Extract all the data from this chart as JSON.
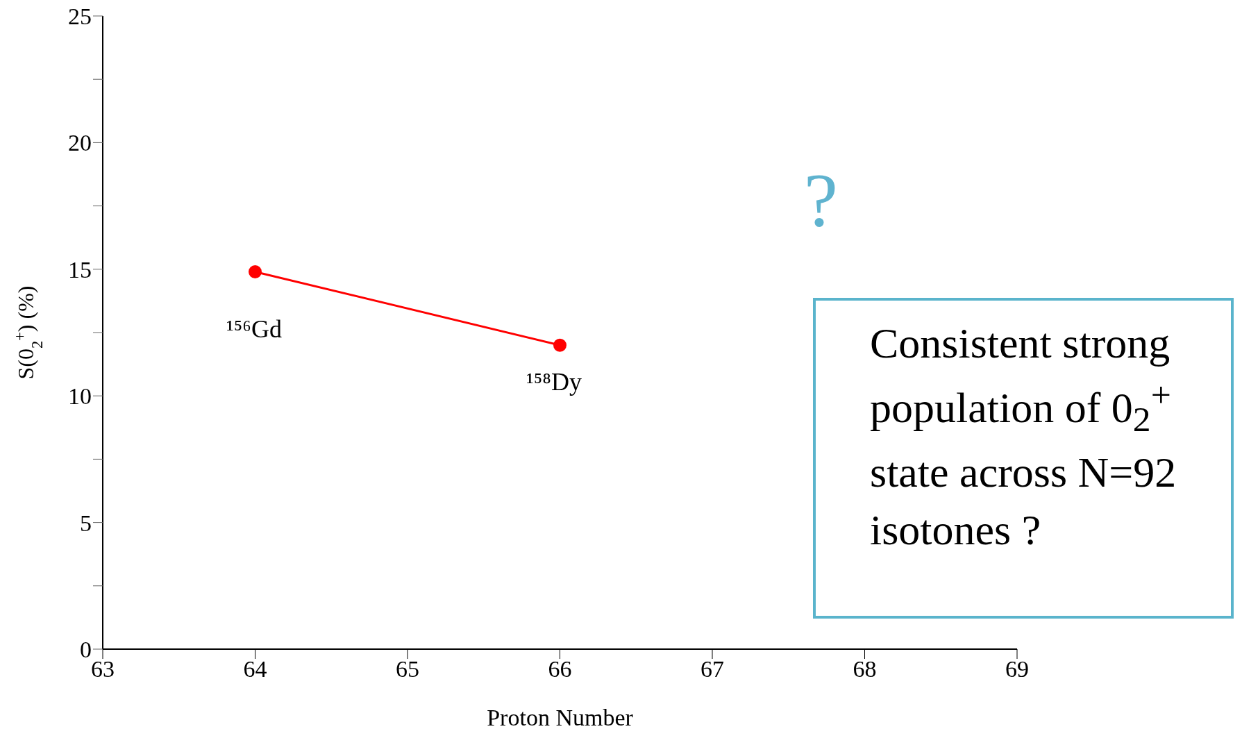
{
  "chart_data": {
    "type": "line",
    "xlabel": "Proton Number",
    "ylabel": "S(0$_{2}$$^{+}$) (%)",
    "x": [
      64,
      66
    ],
    "series": [
      {
        "color": "#ff0000",
        "values": [
          14.9,
          12
        ]
      }
    ],
    "xlim": [
      63,
      69
    ],
    "xticks": [
      63,
      64,
      65,
      66,
      67,
      68,
      69
    ],
    "ylim": [
      0,
      25
    ],
    "yticks": [
      0,
      {
        "value": 2.5,
        "label": null
      },
      5,
      {
        "value": 7.5,
        "label": null
      },
      10,
      {
        "value": 12.5,
        "label": null
      },
      15,
      {
        "value": 17.5,
        "label": null
      },
      20,
      {
        "value": 22.5,
        "label": null
      },
      25
    ],
    "marker": "circle",
    "line_style": "solid",
    "grid": false,
    "legend": false,
    "annotations": [
      "¹⁵⁶Gd",
      "¹⁵⁸Dy",
      "?",
      "Consistent strong population of 0$_{2}$$^{+}$ state across N=92 isotones ?"
    ]
  }
}
